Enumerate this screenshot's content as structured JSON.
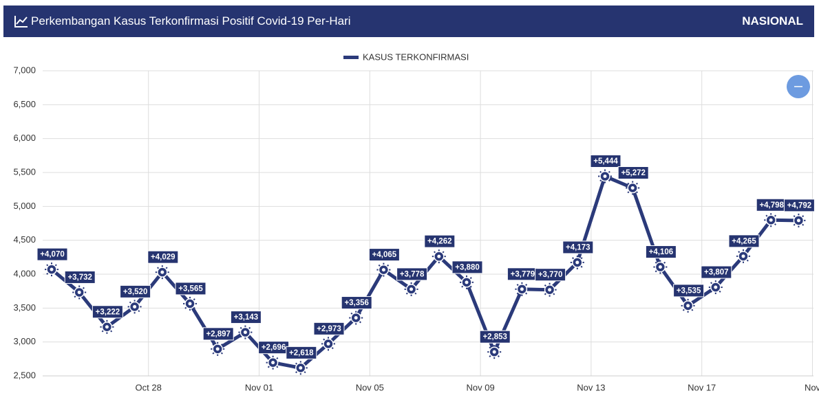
{
  "header": {
    "title": "Perkembangan Kasus Terkonfirmasi Positif Covid-19 Per-Hari",
    "region": "NASIONAL"
  },
  "chart_data": {
    "type": "line",
    "x": [
      null,
      null,
      null,
      "Oct 28",
      null,
      null,
      null,
      "Nov 01",
      null,
      null,
      null,
      "Nov 05",
      null,
      null,
      null,
      "Nov 09",
      null,
      null,
      null,
      "Nov 13",
      null,
      null,
      null,
      "Nov 17",
      null,
      null,
      null,
      "Nov"
    ],
    "series": [
      {
        "name": "KASUS TERKONFIRMASI",
        "color": "#2b3a7a",
        "values": [
          4070,
          3732,
          3222,
          3520,
          4029,
          3565,
          2897,
          3143,
          2696,
          2618,
          2973,
          3356,
          4065,
          3778,
          4262,
          3880,
          2853,
          3779,
          3770,
          4173,
          5444,
          5272,
          4106,
          3535,
          3807,
          4265,
          4798,
          4792
        ],
        "value_labels": [
          "+4,070",
          "+3,732",
          "+3,222",
          "+3,520",
          "+4,029",
          "+3,565",
          "+2,897",
          "+3,143",
          "+2,696",
          "+2,618",
          "+2,973",
          "+3,356",
          "+4,065",
          "+3,778",
          "+4,262",
          "+3,880",
          "+2,853",
          "+3,779",
          "+3,770",
          "+4,173",
          "+5,444",
          "+5,272",
          "+4,106",
          "+3,535",
          "+3,807",
          "+4,265",
          "+4,798",
          "+4,792"
        ]
      }
    ],
    "ylim": [
      2500,
      7000
    ],
    "yticks": [
      {
        "value": 2500,
        "label": "2,500"
      },
      {
        "value": 3000,
        "label": "3,000"
      },
      {
        "value": 3500,
        "label": "3,500"
      },
      {
        "value": 4000,
        "label": "4,000"
      },
      {
        "value": 4500,
        "label": "4,500"
      },
      {
        "value": 5000,
        "label": "5,000"
      },
      {
        "value": 5500,
        "label": "5,500"
      },
      {
        "value": 6000,
        "label": "6,000"
      },
      {
        "value": 6500,
        "label": "6,500"
      },
      {
        "value": 7000,
        "label": "7,000"
      }
    ],
    "grid": true,
    "legend": "top"
  }
}
